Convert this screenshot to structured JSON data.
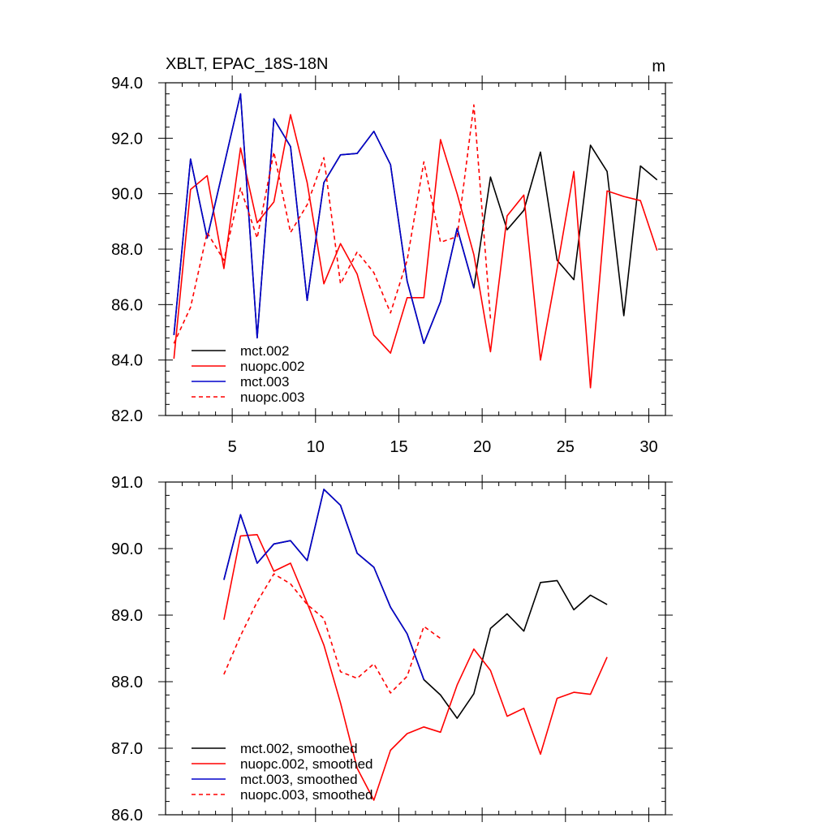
{
  "chart_data": [
    {
      "type": "line",
      "title": "XBLT, EPAC_18S-18N",
      "units": "m",
      "xlim": [
        1,
        31
      ],
      "ylim": [
        82.0,
        94.0
      ],
      "xticks": [
        5,
        10,
        15,
        20,
        25,
        30
      ],
      "xtick_labels": [
        "5",
        "10",
        "15",
        "20",
        "25",
        "30"
      ],
      "yticks": [
        82,
        84,
        86,
        88,
        90,
        92,
        94
      ],
      "ytick_labels": [
        "82.0",
        "84.0",
        "86.0",
        "88.0",
        "90.0",
        "92.0",
        "94.0"
      ],
      "grid": false,
      "legend_position": "bottom-left",
      "series": [
        {
          "name": "mct.002",
          "color": "#000000",
          "dash": "solid",
          "x": [
            1.5,
            2.5,
            3.5,
            4.5,
            5.5,
            6.5,
            7.5,
            8.5,
            9.5,
            10.5,
            11.5,
            12.5,
            13.5,
            14.5,
            15.5,
            16.5,
            17.5,
            18.5,
            19.5,
            20.5,
            21.5,
            22.5,
            23.5,
            24.5,
            25.5,
            26.5,
            27.5,
            28.5,
            29.5,
            30.5
          ],
          "y": [
            84.9,
            91.25,
            88.4,
            91.0,
            93.6,
            84.8,
            92.7,
            91.7,
            86.15,
            90.4,
            91.4,
            91.45,
            92.25,
            91.05,
            86.85,
            84.6,
            86.1,
            88.75,
            86.6,
            90.6,
            88.7,
            89.4,
            91.5,
            87.6,
            86.9,
            91.75,
            90.8,
            85.6,
            91.0,
            90.5
          ]
        },
        {
          "name": "nuopc.002",
          "color": "#ff0000",
          "dash": "solid",
          "x": [
            1.5,
            2.5,
            3.5,
            4.5,
            5.5,
            6.5,
            7.5,
            8.5,
            9.5,
            10.5,
            11.5,
            12.5,
            13.5,
            14.5,
            15.5,
            16.5,
            17.5,
            18.5,
            19.5,
            20.5,
            21.5,
            22.5,
            23.5,
            24.5,
            25.5,
            26.5,
            27.5,
            28.5,
            29.5,
            30.5
          ],
          "y": [
            84.05,
            90.15,
            90.65,
            87.3,
            91.65,
            88.95,
            89.7,
            92.85,
            90.4,
            86.75,
            88.2,
            87.1,
            84.9,
            84.25,
            86.25,
            86.25,
            91.95,
            90.0,
            87.8,
            84.3,
            89.2,
            89.95,
            84.0,
            87.3,
            90.8,
            83.0,
            90.1,
            89.9,
            89.75,
            87.95
          ]
        },
        {
          "name": "mct.003",
          "color": "#0000cc",
          "dash": "solid",
          "x": [
            1.5,
            2.5,
            3.5,
            4.5,
            5.5,
            6.5,
            7.5,
            8.5,
            9.5,
            10.5,
            11.5,
            12.5,
            13.5,
            14.5,
            15.5,
            16.5,
            17.5,
            18.5,
            19.5
          ],
          "y": [
            84.9,
            91.25,
            88.4,
            91.0,
            93.6,
            84.8,
            92.7,
            91.7,
            86.15,
            90.4,
            91.4,
            91.45,
            92.25,
            91.05,
            86.85,
            84.6,
            86.1,
            88.75,
            86.6
          ]
        },
        {
          "name": "nuopc.003",
          "color": "#ff0000",
          "dash": "dashed",
          "x": [
            1.5,
            2.5,
            3.5,
            4.5,
            5.5,
            6.5,
            7.5,
            8.5,
            9.5,
            10.5,
            11.5,
            12.5,
            13.5,
            14.5,
            15.5,
            16.5,
            17.5,
            18.5,
            19.5,
            20.5
          ],
          "y": [
            84.6,
            85.9,
            88.6,
            87.6,
            90.2,
            88.4,
            91.5,
            88.6,
            89.6,
            91.3,
            86.75,
            87.9,
            87.15,
            85.7,
            87.6,
            91.15,
            88.25,
            88.45,
            93.2,
            85.5
          ]
        }
      ]
    },
    {
      "type": "line",
      "title": "",
      "xlim": [
        1,
        31
      ],
      "ylim": [
        86.0,
        91.0
      ],
      "xticks": [
        5,
        10,
        15,
        20,
        25,
        30
      ],
      "yticks": [
        86,
        87,
        88,
        89,
        90,
        91
      ],
      "ytick_labels": [
        "86.0",
        "87.0",
        "88.0",
        "89.0",
        "90.0",
        "91.0"
      ],
      "grid": false,
      "legend_position": "bottom-left",
      "series": [
        {
          "name": "mct.002, smoothed",
          "color": "#000000",
          "dash": "solid",
          "x": [
            4.5,
            5.5,
            6.5,
            7.5,
            8.5,
            9.5,
            10.5,
            11.5,
            12.5,
            13.5,
            14.5,
            15.5,
            16.5,
            17.5,
            18.5,
            19.5,
            20.5,
            21.5,
            22.5,
            23.5,
            24.5,
            25.5,
            26.5,
            27.5
          ],
          "y": [
            89.53,
            90.51,
            89.78,
            90.07,
            90.12,
            89.82,
            90.89,
            90.65,
            89.93,
            89.72,
            89.12,
            88.72,
            88.03,
            87.8,
            87.45,
            87.82,
            88.8,
            89.02,
            88.76,
            89.49,
            89.52,
            89.08,
            89.3,
            89.16
          ]
        },
        {
          "name": "nuopc.002, smoothed",
          "color": "#ff0000",
          "dash": "solid",
          "x": [
            4.5,
            5.5,
            6.5,
            7.5,
            8.5,
            9.5,
            10.5,
            11.5,
            12.5,
            13.5,
            14.5,
            15.5,
            16.5,
            17.5,
            18.5,
            19.5,
            20.5,
            21.5,
            22.5,
            23.5,
            24.5,
            25.5,
            26.5,
            27.5
          ],
          "y": [
            88.93,
            90.19,
            90.21,
            89.66,
            89.78,
            89.18,
            88.55,
            87.68,
            86.7,
            86.22,
            86.97,
            87.22,
            87.32,
            87.24,
            87.95,
            88.49,
            88.17,
            87.48,
            87.6,
            86.91,
            87.75,
            87.84,
            87.81,
            88.37
          ]
        },
        {
          "name": "mct.003, smoothed",
          "color": "#0000cc",
          "dash": "solid",
          "x": [
            4.5,
            5.5,
            6.5,
            7.5,
            8.5,
            9.5,
            10.5,
            11.5,
            12.5,
            13.5,
            14.5,
            15.5,
            16.5
          ],
          "y": [
            89.53,
            90.51,
            89.78,
            90.07,
            90.12,
            89.82,
            90.89,
            90.65,
            89.93,
            89.72,
            89.12,
            88.72,
            88.03
          ]
        },
        {
          "name": "nuopc.003, smoothed",
          "color": "#ff0000",
          "dash": "dashed",
          "x": [
            4.5,
            5.5,
            6.5,
            7.5,
            8.5,
            9.5,
            10.5,
            11.5,
            12.5,
            13.5,
            14.5,
            15.5,
            16.5,
            17.5
          ],
          "y": [
            88.11,
            88.69,
            89.2,
            89.62,
            89.47,
            89.16,
            88.95,
            88.15,
            88.05,
            88.27,
            87.83,
            88.08,
            88.83,
            88.65
          ]
        }
      ]
    }
  ]
}
